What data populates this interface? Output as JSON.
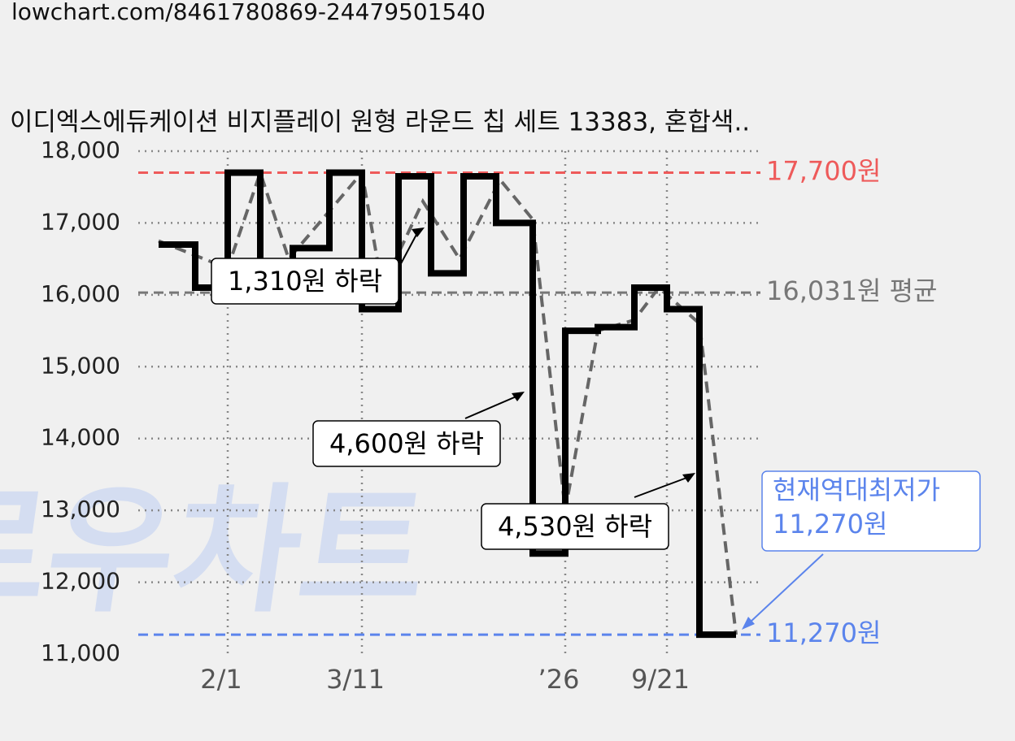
{
  "url": "lowchart.com/8461780869-24479501540",
  "watermark": "로우차트",
  "chart_data": {
    "type": "line",
    "title": "이디엑스에듀케이션 비지플레이 원형 라운드 칩 세트 13383, 혼합색..",
    "xlim": [
      0,
      153
    ],
    "xticks": [
      {
        "value": 22,
        "label": "2/1"
      },
      {
        "value": 55,
        "label": "3/11"
      },
      {
        "value": 105,
        "label": "’26"
      },
      {
        "value": 130,
        "label": "9/21"
      }
    ],
    "ylim": [
      11000,
      18000
    ],
    "yticks": [
      {
        "value": 11000,
        "label": "11,000"
      },
      {
        "value": 12000,
        "label": "12,000"
      },
      {
        "value": 13000,
        "label": "13,000"
      },
      {
        "value": 14000,
        "label": "14,000"
      },
      {
        "value": 15000,
        "label": "15,000"
      },
      {
        "value": 16000,
        "label": "16,000"
      },
      {
        "value": 17000,
        "label": "17,000"
      },
      {
        "value": 18000,
        "label": "18,000"
      }
    ],
    "grid": true,
    "series": [
      {
        "style": "step",
        "color": "#000000",
        "x": [
          5,
          14,
          22,
          30,
          38,
          47,
          55,
          64,
          72,
          80,
          88,
          97,
          105,
          113,
          122,
          130,
          138,
          147
        ],
        "values": [
          16700,
          16100,
          17700,
          16100,
          16650,
          17700,
          15800,
          17650,
          16300,
          17650,
          17000,
          12400,
          15500,
          15550,
          16100,
          15800,
          11270,
          11270
        ]
      },
      {
        "style": "dashed",
        "color": "#666666",
        "x": [
          5,
          22,
          30,
          37,
          55,
          60,
          70,
          79,
          89,
          97,
          105,
          113,
          122,
          128,
          138,
          147
        ],
        "values": [
          16750,
          16370,
          17700,
          16500,
          17700,
          16100,
          17300,
          16500,
          17600,
          17050,
          13000,
          15500,
          15650,
          16100,
          15600,
          11270
        ]
      }
    ],
    "reference_lines": [
      {
        "value": 17700,
        "label": "17,700원",
        "color": "#ee5a5a"
      },
      {
        "value": 16031,
        "label": "16,031원 평균",
        "color": "#777777"
      },
      {
        "value": 11270,
        "label": "11,270원",
        "color": "#5b84ec"
      }
    ],
    "annotations": [
      "1,310원 하락",
      "4,600원 하락",
      "4,530원 하락"
    ],
    "low_note": [
      "현재역대최저가",
      "11,270원"
    ]
  }
}
